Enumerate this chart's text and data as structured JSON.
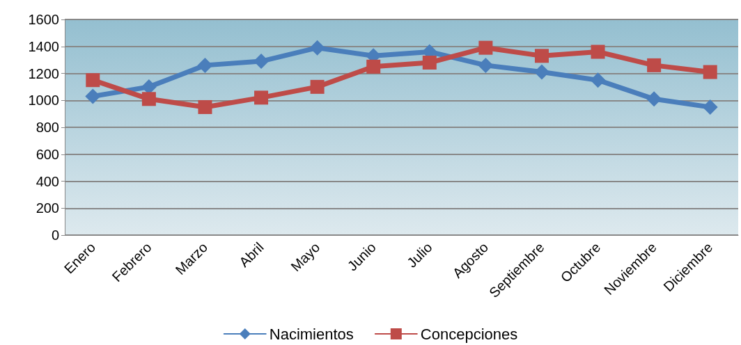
{
  "chart_data": {
    "type": "line",
    "categories": [
      "Enero",
      "Febrero",
      "Marzo",
      "Abril",
      "Mayo",
      "Junio",
      "Julio",
      "Agosto",
      "Septiembre",
      "Octubre",
      "Noviembre",
      "Diciembre"
    ],
    "series": [
      {
        "name": "Nacimientos",
        "color": "#4a7ebb",
        "marker": "diamond",
        "values": [
          1030,
          1100,
          1260,
          1290,
          1390,
          1330,
          1360,
          1260,
          1210,
          1150,
          1010,
          950
        ]
      },
      {
        "name": "Concepciones",
        "color": "#be4b48",
        "marker": "square",
        "values": [
          1150,
          1010,
          950,
          1020,
          1100,
          1250,
          1280,
          1390,
          1330,
          1360,
          1260,
          1210
        ]
      }
    ],
    "ylim": [
      0,
      1600
    ],
    "yticks": [
      0,
      200,
      400,
      600,
      800,
      1000,
      1200,
      1400,
      1600
    ],
    "grid": "y",
    "legend": "bottom",
    "line_style": "solid"
  }
}
